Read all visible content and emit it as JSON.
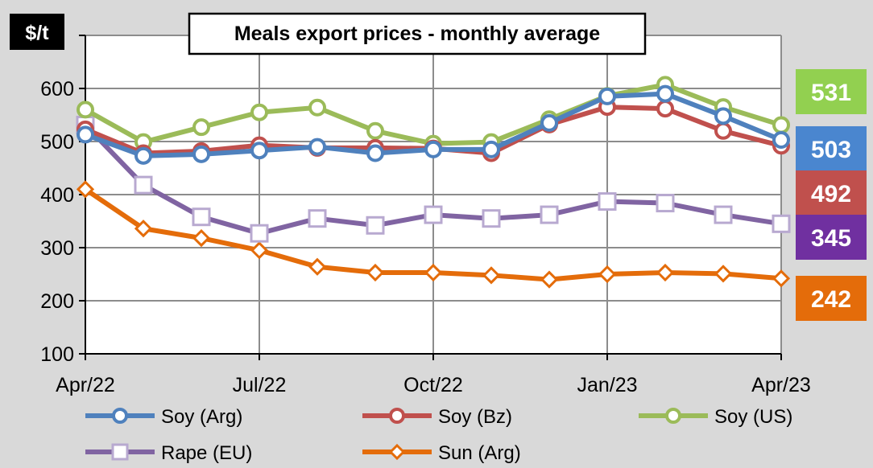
{
  "chart_data": {
    "type": "line",
    "title": "Meals export prices - monthly average",
    "ylabel": "$/t",
    "xlabel": "",
    "ylim": [
      100,
      700
    ],
    "yticks": [
      100,
      200,
      300,
      400,
      500,
      600
    ],
    "x": [
      "Apr/22",
      "May/22",
      "Jun/22",
      "Jul/22",
      "Aug/22",
      "Sep/22",
      "Oct/22",
      "Nov/22",
      "Dec/22",
      "Jan/23",
      "Feb/23",
      "Mar/23",
      "Apr/23"
    ],
    "xtick_labels": [
      "Apr/22",
      "Jul/22",
      "Oct/22",
      "Jan/23",
      "Apr/23"
    ],
    "xtick_indices": [
      0,
      3,
      6,
      9,
      12
    ],
    "grid": true,
    "legend_position": "bottom",
    "series": [
      {
        "name": "Soy (Arg)",
        "color": "#4f81bd",
        "marker": "circle",
        "values": [
          513,
          473,
          476,
          483,
          490,
          478,
          485,
          485,
          535,
          585,
          590,
          548,
          503
        ],
        "end_label": "503",
        "end_color": "#4a86cf"
      },
      {
        "name": "Soy (Bz)",
        "color": "#c0504d",
        "marker": "circle",
        "values": [
          523,
          478,
          482,
          493,
          488,
          488,
          487,
          478,
          532,
          565,
          562,
          520,
          492
        ],
        "end_label": "492",
        "end_color": "#c0504d"
      },
      {
        "name": "Soy (US)",
        "color": "#9bbb59",
        "marker": "circle",
        "values": [
          560,
          499,
          527,
          555,
          564,
          520,
          496,
          499,
          542,
          586,
          607,
          565,
          531
        ],
        "end_label": "531",
        "end_color": "#92d050"
      },
      {
        "name": "Rape (EU)",
        "color": "#8064a2",
        "marker": "square",
        "values": [
          531,
          418,
          358,
          327,
          355,
          342,
          362,
          355,
          362,
          387,
          384,
          362,
          345
        ],
        "end_label": "345",
        "end_color": "#7030a0"
      },
      {
        "name": "Sun (Arg)",
        "color": "#e46c0a",
        "marker": "diamond",
        "values": [
          410,
          336,
          318,
          295,
          264,
          253,
          253,
          248,
          240,
          250,
          253,
          251,
          242
        ],
        "end_label": "242",
        "end_color": "#e46c0a"
      }
    ]
  }
}
